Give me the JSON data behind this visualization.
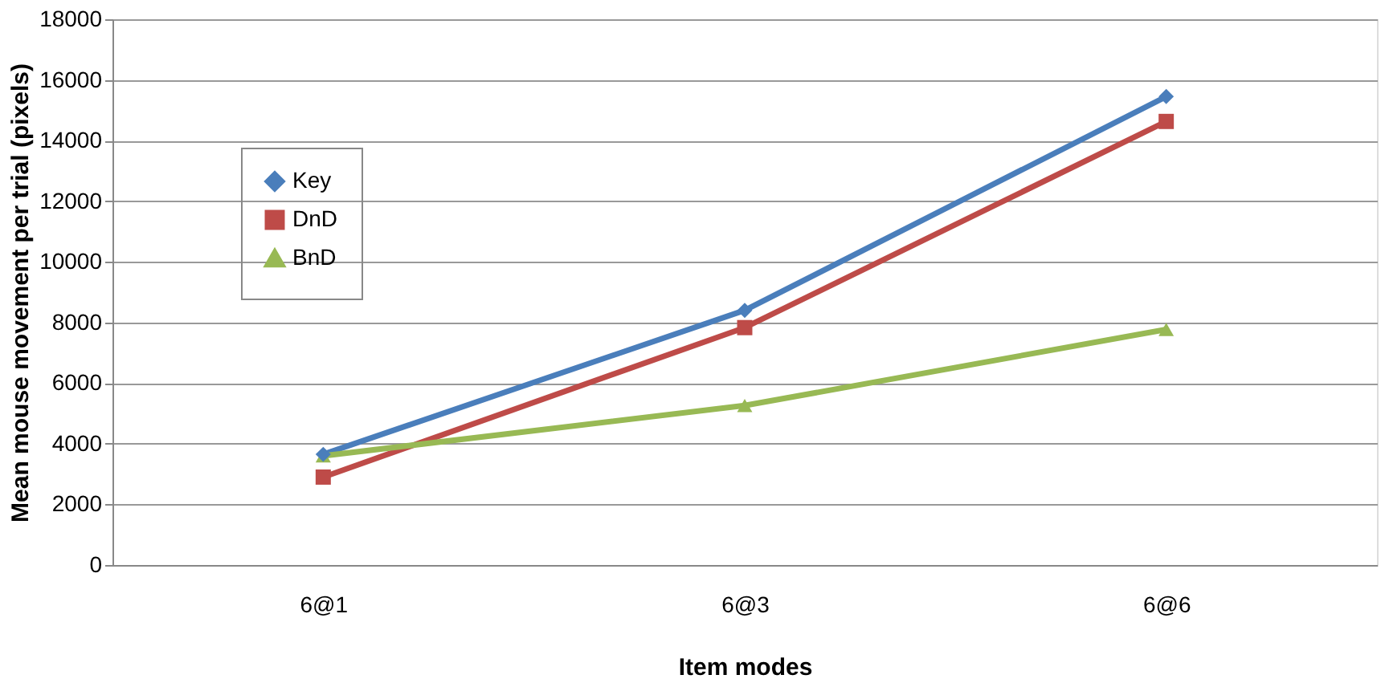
{
  "chart_data": {
    "type": "line",
    "xlabel": "Item modes",
    "ylabel": "Mean mouse movement per trial (pixels)",
    "categories": [
      "6@1",
      "6@3",
      "6@6"
    ],
    "series": [
      {
        "name": "Key",
        "color": "#4a7ebb",
        "marker": "diamond",
        "values": [
          3650,
          8400,
          15450
        ]
      },
      {
        "name": "DnD",
        "color": "#be4b48",
        "marker": "square",
        "values": [
          2900,
          7830,
          14630
        ]
      },
      {
        "name": "BnD",
        "color": "#98b954",
        "marker": "triangle",
        "values": [
          3600,
          5260,
          7770
        ]
      }
    ],
    "ylim": [
      0,
      18000
    ],
    "yticks": [
      0,
      2000,
      4000,
      6000,
      8000,
      10000,
      12000,
      14000,
      16000,
      18000
    ],
    "grid": "y",
    "legend": "top left",
    "line_style": "solid"
  }
}
